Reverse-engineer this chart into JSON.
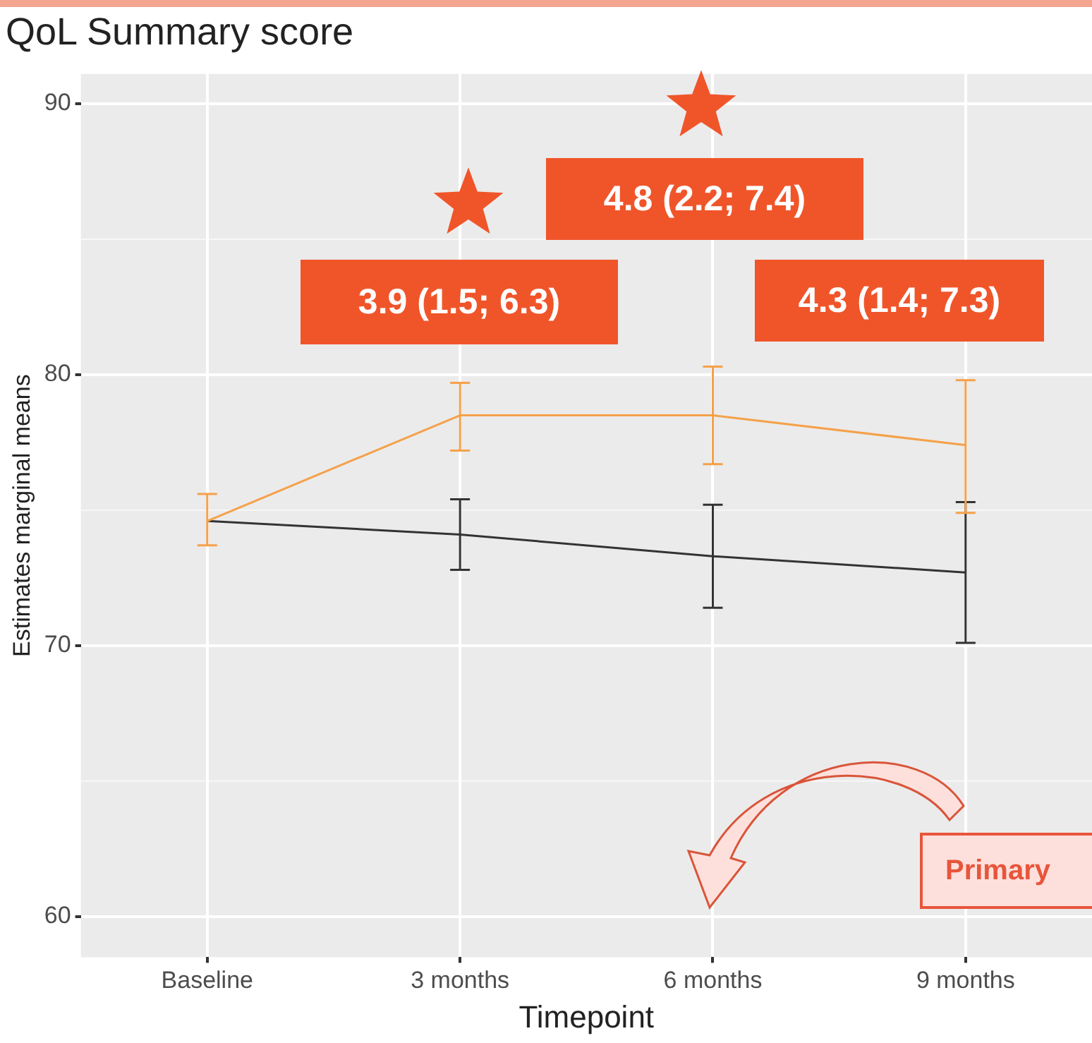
{
  "chart_data": {
    "type": "line",
    "title": "QoL Summary score",
    "xlabel": "Timepoint",
    "ylabel": "Estimates marginal means",
    "categories": [
      "Baseline",
      "3 months",
      "6 months",
      "9 months"
    ],
    "series": [
      {
        "color": "#f5a14a",
        "values": [
          74.6,
          78.5,
          78.5,
          77.4
        ],
        "errors": [
          [
            73.7,
            75.6
          ],
          [
            77.2,
            79.7
          ],
          [
            76.7,
            80.3
          ],
          [
            74.9,
            79.8
          ]
        ]
      },
      {
        "color": "#333333",
        "values": [
          74.6,
          74.1,
          73.3,
          72.7
        ],
        "errors": [
          null,
          [
            72.8,
            75.4
          ],
          [
            71.4,
            75.2
          ],
          [
            70.1,
            75.3
          ]
        ]
      }
    ],
    "ylim": [
      58.5,
      91.1
    ],
    "yticks": [
      60,
      70,
      80,
      90
    ],
    "grid": true,
    "legend": false,
    "marker": "none",
    "line_style": "solid",
    "annotations": [
      "3.9 (1.5; 6.3)",
      "4.8 (2.2; 7.4)",
      "4.3 (1.4; 7.3)",
      "Primary"
    ]
  }
}
